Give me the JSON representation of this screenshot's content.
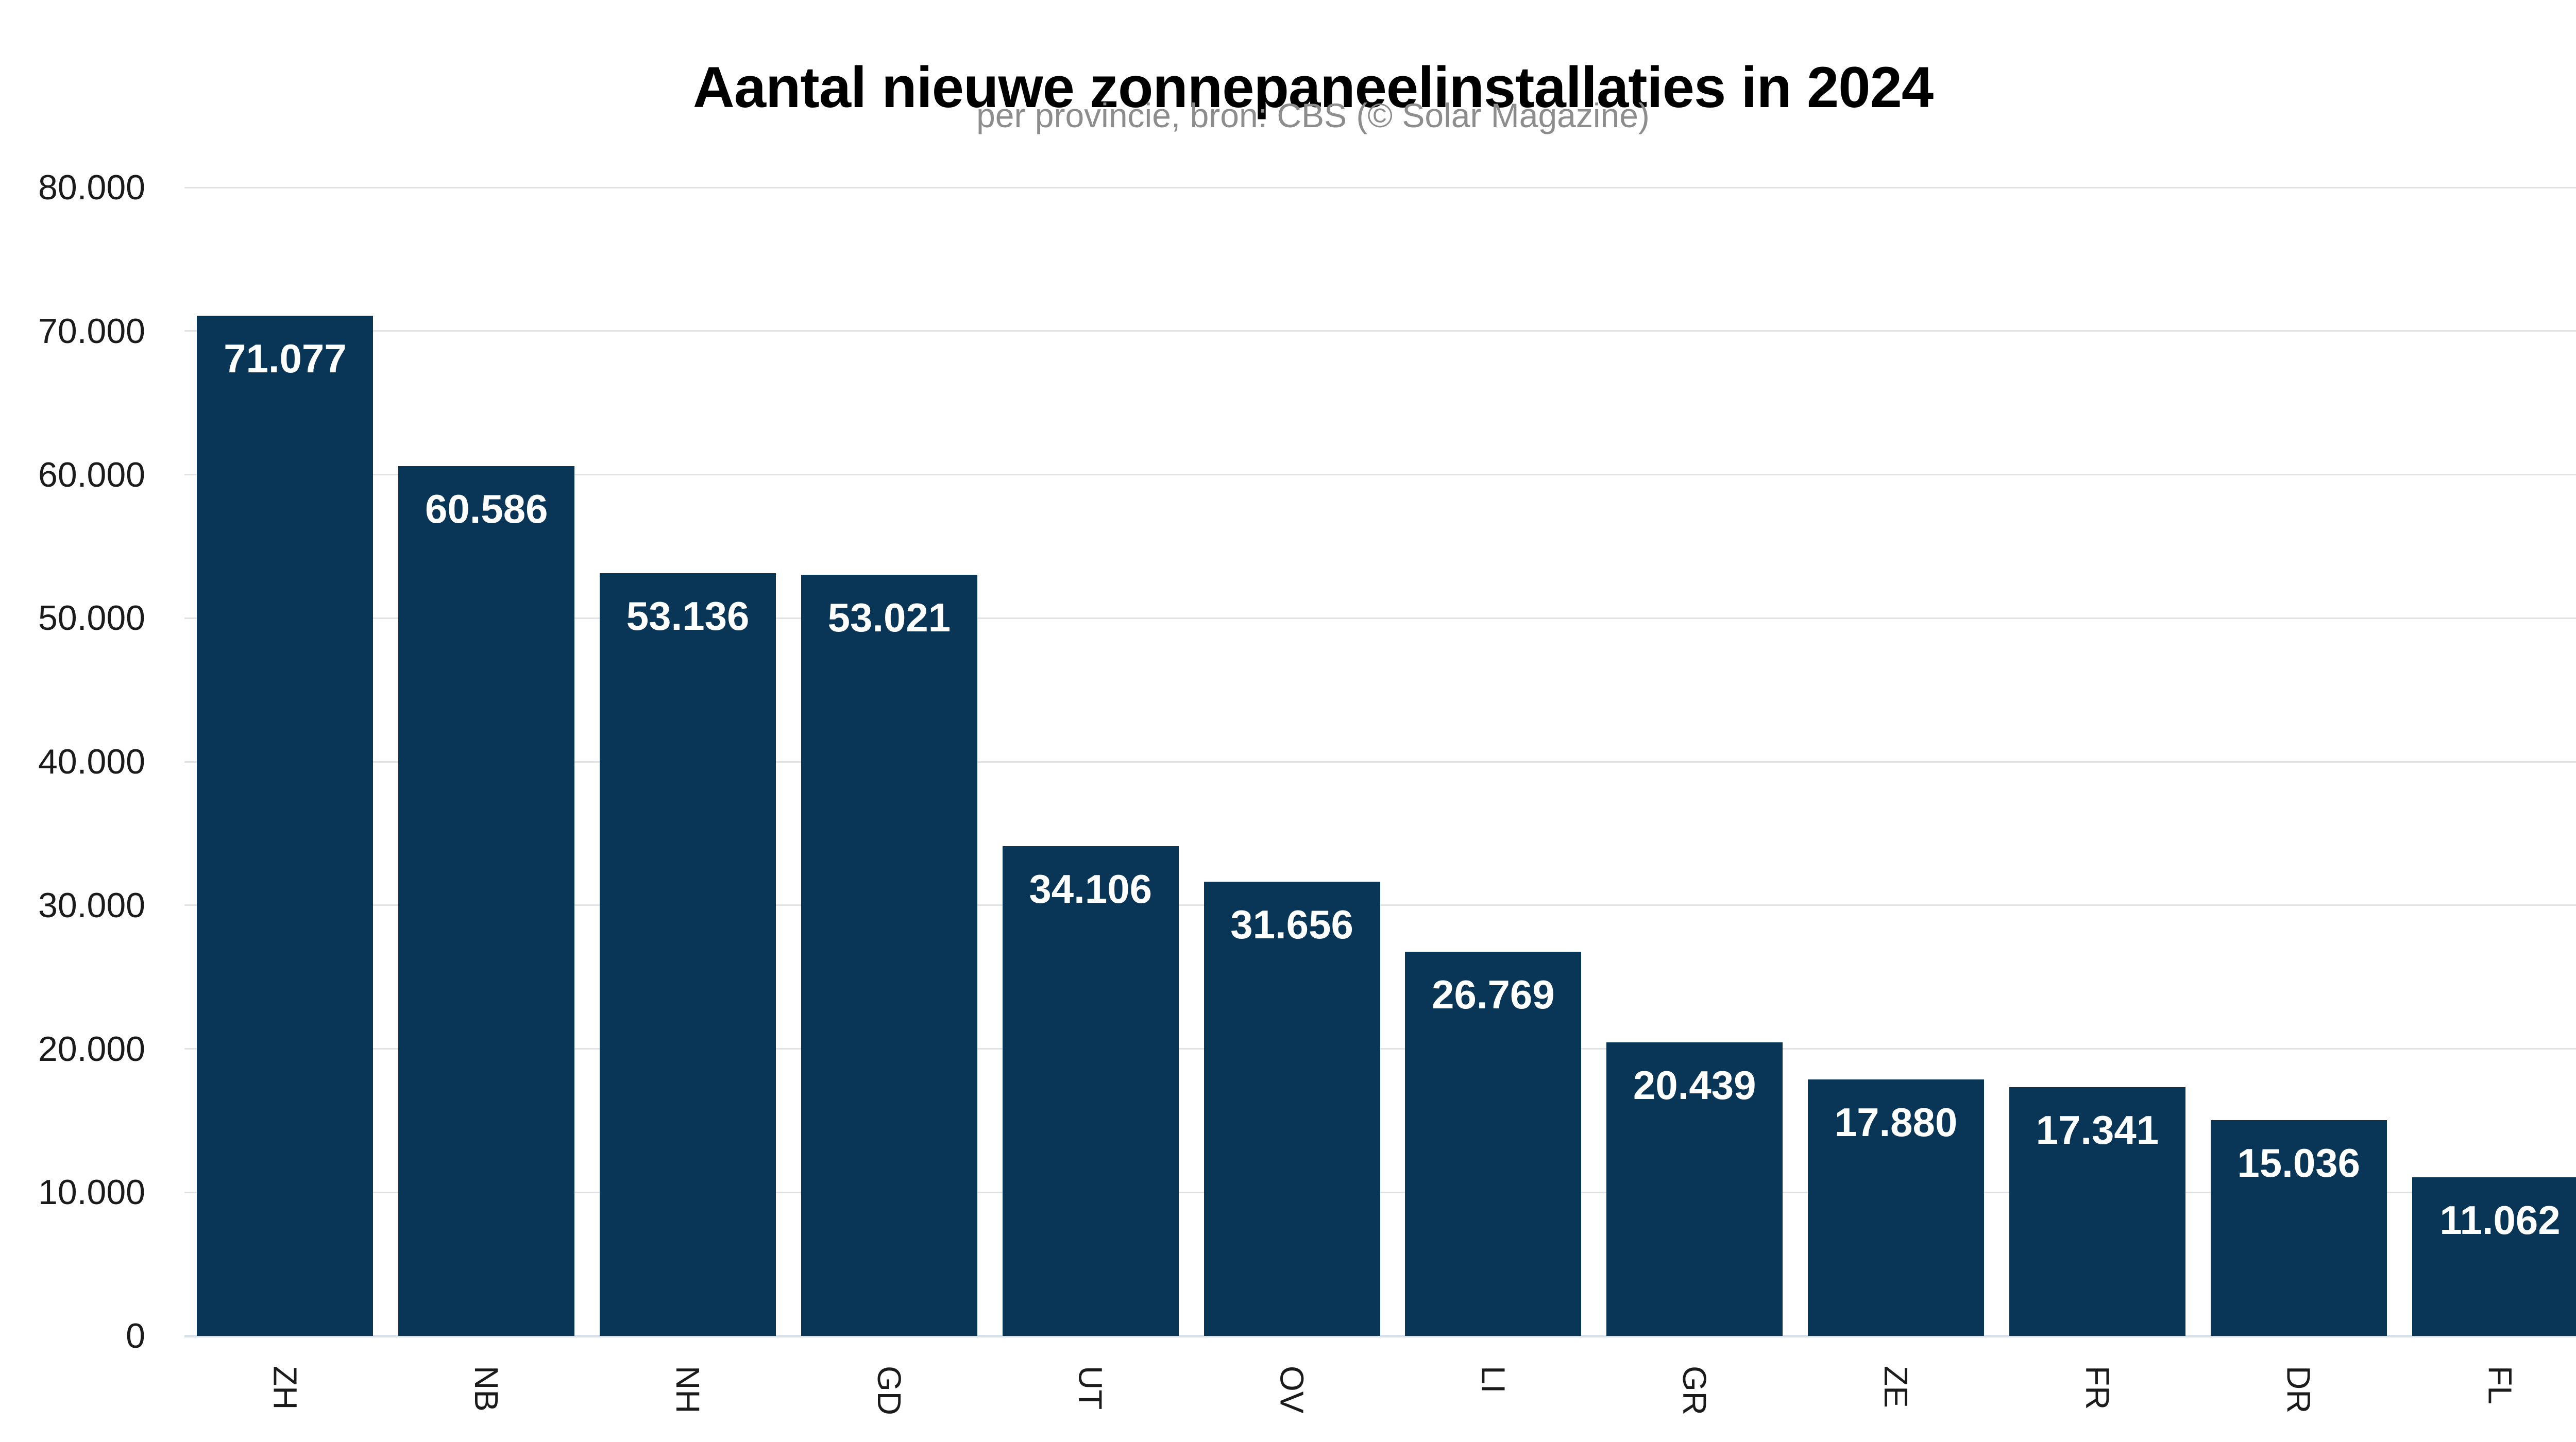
{
  "header": {
    "title": "Aantal nieuwe zonnepaneelinstallaties in 2024",
    "subtitle": "per provincie, bron: CBS (© Solar Magazine)"
  },
  "chart_data": {
    "type": "bar",
    "title": "Aantal nieuwe zonnepaneelinstallaties in 2024",
    "subtitle": "per provincie, bron: CBS (© Solar Magazine)",
    "categories": [
      "ZH",
      "NB",
      "NH",
      "GD",
      "UT",
      "OV",
      "LI",
      "GR",
      "ZE",
      "FR",
      "DR",
      "FL"
    ],
    "values": [
      71077,
      60586,
      53136,
      53021,
      34106,
      31656,
      26769,
      20439,
      17880,
      17341,
      15036,
      11062
    ],
    "value_labels": [
      "71.077",
      "60.586",
      "53.136",
      "53.021",
      "34.106",
      "31.656",
      "26.769",
      "20.439",
      "17.880",
      "17.341",
      "15.036",
      "11.062"
    ],
    "xlabel": "",
    "ylabel": "",
    "ylim": [
      0,
      80000
    ],
    "grid": true,
    "legend_position": "none",
    "x_label_rotation_deg": 90,
    "y_ticks": [
      {
        "value": 80000,
        "label": "80.000"
      },
      {
        "value": 70000,
        "label": "70.000"
      },
      {
        "value": 60000,
        "label": "60.000"
      },
      {
        "value": 50000,
        "label": "50.000"
      },
      {
        "value": 40000,
        "label": "40.000"
      },
      {
        "value": 30000,
        "label": "30.000"
      },
      {
        "value": 20000,
        "label": "20.000"
      },
      {
        "value": 10000,
        "label": "10.000"
      },
      {
        "value": 0,
        "label": "0"
      }
    ],
    "colors": {
      "bar": "#093556",
      "grid": "#e3e3e3",
      "baseline": "#d9e1e8",
      "title": "#000000",
      "subtitle": "#8d8d8d",
      "axis_text": "#1b1b1b",
      "value_label": "#ffffff",
      "background": "#ffffff"
    }
  }
}
